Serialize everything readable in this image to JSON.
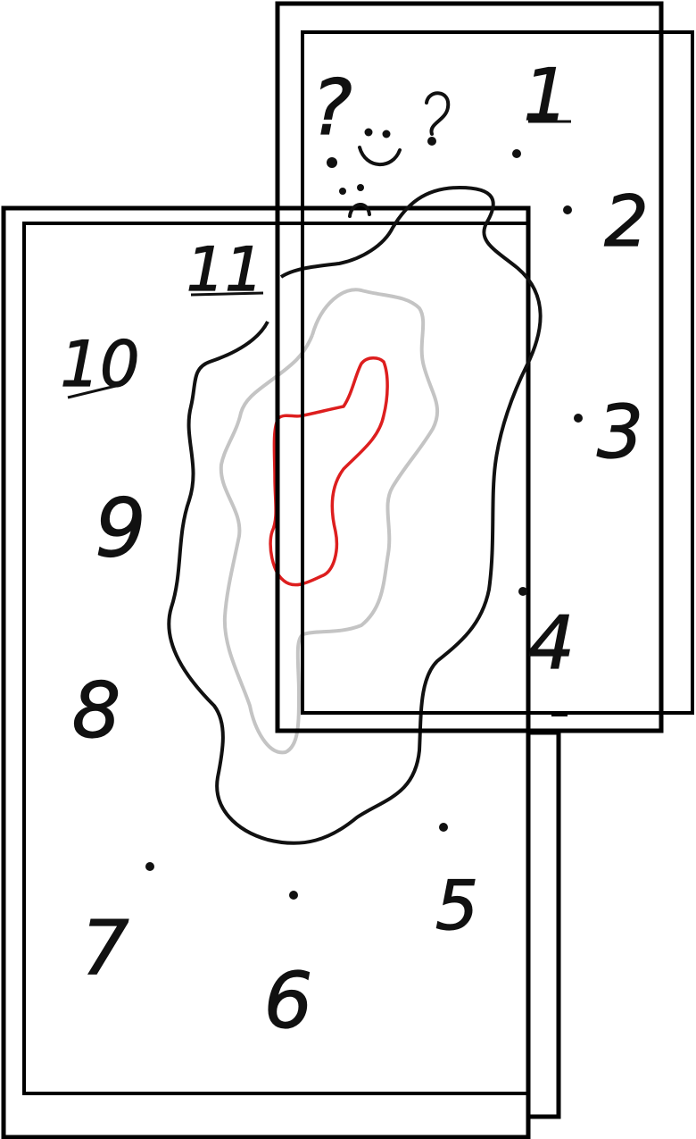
{
  "clock_numbers": {
    "n1": "1",
    "n2": "2",
    "n3": "3",
    "n4": "4",
    "n5": "5",
    "n6": "6",
    "n7": "7",
    "n8": "8",
    "n9": "9",
    "n10": "10",
    "n11": "11"
  },
  "doodle_mark": "?",
  "colors": {
    "ink": "#111111",
    "paper": "#ffffff",
    "outer_contour": "#111111",
    "middle_contour": "#c4c4c4",
    "inner_contour": "#dd1e1e"
  },
  "icons": [
    "question-mark-doodle",
    "smiley-face-icon",
    "frowny-face-icon"
  ]
}
